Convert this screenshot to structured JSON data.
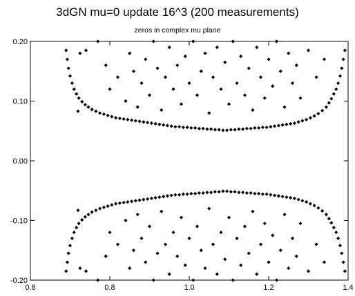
{
  "chart_data": {
    "type": "scatter",
    "title": "3dGN mu=0 update 16^3 (200 measurements)",
    "subtitle": "zeros in complex mu plane",
    "xlabel": "",
    "ylabel": "",
    "xlim": [
      0.6,
      1.4
    ],
    "ylim": [
      -0.2,
      0.2
    ],
    "x_ticks": [
      0.6,
      0.8,
      1.0,
      1.2,
      1.4
    ],
    "x_tick_labels": [
      "0.6",
      "0.8",
      "1.0",
      "1.2",
      "1.4"
    ],
    "y_ticks": [
      -0.2,
      -0.1,
      0.0,
      0.1,
      0.2
    ],
    "y_tick_labels": [
      "-0.20",
      "-0.10",
      "0.00",
      "0.10",
      "0.20"
    ],
    "grid": false,
    "legend": "none",
    "marker": "diamond",
    "marker_color": "#000000",
    "series": [
      {
        "values": [
          [
            0.69,
            0.185
          ],
          [
            0.693,
            0.17
          ],
          [
            0.696,
            0.155
          ],
          [
            0.7,
            0.142
          ],
          [
            0.705,
            0.13
          ],
          [
            0.71,
            0.12
          ],
          [
            0.716,
            0.112
          ],
          [
            0.722,
            0.105
          ],
          [
            0.73,
            0.099
          ],
          [
            0.738,
            0.094
          ],
          [
            0.746,
            0.09
          ],
          [
            0.755,
            0.086
          ],
          [
            0.765,
            0.083
          ],
          [
            0.775,
            0.08
          ],
          [
            0.785,
            0.078
          ],
          [
            0.795,
            0.076
          ],
          [
            0.805,
            0.074
          ],
          [
            0.815,
            0.072
          ],
          [
            0.825,
            0.071
          ],
          [
            0.835,
            0.07
          ],
          [
            0.845,
            0.069
          ],
          [
            0.855,
            0.068
          ],
          [
            0.865,
            0.067
          ],
          [
            0.875,
            0.066
          ],
          [
            0.885,
            0.065
          ],
          [
            0.895,
            0.064
          ],
          [
            0.905,
            0.063
          ],
          [
            0.915,
            0.062
          ],
          [
            0.925,
            0.061
          ],
          [
            0.935,
            0.06
          ],
          [
            0.945,
            0.059
          ],
          [
            0.955,
            0.058
          ],
          [
            0.965,
            0.057
          ],
          [
            0.975,
            0.057
          ],
          [
            0.985,
            0.056
          ],
          [
            0.995,
            0.056
          ],
          [
            1.005,
            0.055
          ],
          [
            1.015,
            0.055
          ],
          [
            1.025,
            0.054
          ],
          [
            1.035,
            0.054
          ],
          [
            1.045,
            0.053
          ],
          [
            1.055,
            0.053
          ],
          [
            1.065,
            0.052
          ],
          [
            1.075,
            0.052
          ],
          [
            1.085,
            0.051
          ],
          [
            1.095,
            0.051
          ],
          [
            1.105,
            0.052
          ],
          [
            1.115,
            0.052
          ],
          [
            1.125,
            0.053
          ],
          [
            1.135,
            0.053
          ],
          [
            1.145,
            0.054
          ],
          [
            1.155,
            0.054
          ],
          [
            1.165,
            0.055
          ],
          [
            1.175,
            0.055
          ],
          [
            1.185,
            0.056
          ],
          [
            1.195,
            0.056
          ],
          [
            1.205,
            0.057
          ],
          [
            1.215,
            0.058
          ],
          [
            1.225,
            0.059
          ],
          [
            1.235,
            0.06
          ],
          [
            1.245,
            0.061
          ],
          [
            1.255,
            0.062
          ],
          [
            1.265,
            0.063
          ],
          [
            1.275,
            0.065
          ],
          [
            1.285,
            0.067
          ],
          [
            1.295,
            0.069
          ],
          [
            1.305,
            0.072
          ],
          [
            1.315,
            0.075
          ],
          [
            1.325,
            0.079
          ],
          [
            1.335,
            0.084
          ],
          [
            1.345,
            0.09
          ],
          [
            1.352,
            0.097
          ],
          [
            1.358,
            0.104
          ],
          [
            1.364,
            0.112
          ],
          [
            1.37,
            0.12
          ],
          [
            1.375,
            0.13
          ],
          [
            1.38,
            0.142
          ],
          [
            1.384,
            0.155
          ],
          [
            1.388,
            0.17
          ],
          [
            1.392,
            0.185
          ],
          [
            0.69,
            -0.185
          ],
          [
            0.693,
            -0.17
          ],
          [
            0.696,
            -0.155
          ],
          [
            0.7,
            -0.142
          ],
          [
            0.705,
            -0.13
          ],
          [
            0.71,
            -0.12
          ],
          [
            0.716,
            -0.112
          ],
          [
            0.722,
            -0.105
          ],
          [
            0.73,
            -0.099
          ],
          [
            0.738,
            -0.094
          ],
          [
            0.746,
            -0.09
          ],
          [
            0.755,
            -0.086
          ],
          [
            0.765,
            -0.083
          ],
          [
            0.775,
            -0.08
          ],
          [
            0.785,
            -0.078
          ],
          [
            0.795,
            -0.076
          ],
          [
            0.805,
            -0.074
          ],
          [
            0.815,
            -0.072
          ],
          [
            0.825,
            -0.071
          ],
          [
            0.835,
            -0.07
          ],
          [
            0.845,
            -0.069
          ],
          [
            0.855,
            -0.068
          ],
          [
            0.865,
            -0.067
          ],
          [
            0.875,
            -0.066
          ],
          [
            0.885,
            -0.065
          ],
          [
            0.895,
            -0.064
          ],
          [
            0.905,
            -0.063
          ],
          [
            0.915,
            -0.062
          ],
          [
            0.925,
            -0.061
          ],
          [
            0.935,
            -0.06
          ],
          [
            0.945,
            -0.059
          ],
          [
            0.955,
            -0.058
          ],
          [
            0.965,
            -0.057
          ],
          [
            0.975,
            -0.057
          ],
          [
            0.985,
            -0.056
          ],
          [
            0.995,
            -0.056
          ],
          [
            1.005,
            -0.055
          ],
          [
            1.015,
            -0.055
          ],
          [
            1.025,
            -0.054
          ],
          [
            1.035,
            -0.054
          ],
          [
            1.045,
            -0.053
          ],
          [
            1.055,
            -0.053
          ],
          [
            1.065,
            -0.052
          ],
          [
            1.075,
            -0.052
          ],
          [
            1.085,
            -0.051
          ],
          [
            1.095,
            -0.051
          ],
          [
            1.105,
            -0.052
          ],
          [
            1.115,
            -0.052
          ],
          [
            1.125,
            -0.053
          ],
          [
            1.135,
            -0.053
          ],
          [
            1.145,
            -0.054
          ],
          [
            1.155,
            -0.054
          ],
          [
            1.165,
            -0.055
          ],
          [
            1.175,
            -0.055
          ],
          [
            1.185,
            -0.056
          ],
          [
            1.195,
            -0.056
          ],
          [
            1.205,
            -0.057
          ],
          [
            1.215,
            -0.058
          ],
          [
            1.225,
            -0.059
          ],
          [
            1.235,
            -0.06
          ],
          [
            1.245,
            -0.061
          ],
          [
            1.255,
            -0.062
          ],
          [
            1.265,
            -0.063
          ],
          [
            1.275,
            -0.065
          ],
          [
            1.285,
            -0.067
          ],
          [
            1.295,
            -0.069
          ],
          [
            1.305,
            -0.072
          ],
          [
            1.315,
            -0.075
          ],
          [
            1.325,
            -0.079
          ],
          [
            1.335,
            -0.084
          ],
          [
            1.345,
            -0.09
          ],
          [
            1.352,
            -0.097
          ],
          [
            1.358,
            -0.104
          ],
          [
            1.364,
            -0.112
          ],
          [
            1.37,
            -0.12
          ],
          [
            1.375,
            -0.13
          ],
          [
            1.38,
            -0.142
          ],
          [
            1.384,
            -0.155
          ],
          [
            1.388,
            -0.17
          ],
          [
            1.392,
            -0.185
          ],
          [
            0.72,
            0.083
          ],
          [
            0.725,
            0.18
          ],
          [
            0.74,
            0.185
          ],
          [
            0.77,
            0.2
          ],
          [
            0.79,
            0.16
          ],
          [
            0.8,
            0.12
          ],
          [
            0.82,
            0.14
          ],
          [
            0.84,
            0.1
          ],
          [
            0.85,
            0.18
          ],
          [
            0.86,
            0.15
          ],
          [
            0.87,
            0.09
          ],
          [
            0.88,
            0.13
          ],
          [
            0.89,
            0.17
          ],
          [
            0.9,
            0.11
          ],
          [
            0.91,
            0.2
          ],
          [
            0.92,
            0.155
          ],
          [
            0.93,
            0.085
          ],
          [
            0.94,
            0.14
          ],
          [
            0.95,
            0.19
          ],
          [
            0.96,
            0.12
          ],
          [
            0.97,
            0.16
          ],
          [
            0.98,
            0.095
          ],
          [
            0.99,
            0.175
          ],
          [
            1.0,
            0.13
          ],
          [
            1.01,
            0.2
          ],
          [
            1.02,
            0.11
          ],
          [
            1.03,
            0.15
          ],
          [
            1.04,
            0.18
          ],
          [
            1.05,
            0.08
          ],
          [
            1.06,
            0.14
          ],
          [
            1.07,
            0.19
          ],
          [
            1.08,
            0.12
          ],
          [
            1.09,
            0.165
          ],
          [
            1.1,
            0.095
          ],
          [
            1.11,
            0.2
          ],
          [
            1.12,
            0.13
          ],
          [
            1.13,
            0.175
          ],
          [
            1.14,
            0.11
          ],
          [
            1.15,
            0.155
          ],
          [
            1.16,
            0.085
          ],
          [
            1.17,
            0.19
          ],
          [
            1.18,
            0.14
          ],
          [
            1.19,
            0.105
          ],
          [
            1.2,
            0.17
          ],
          [
            1.21,
            0.125
          ],
          [
            1.22,
            0.2
          ],
          [
            1.23,
            0.15
          ],
          [
            1.24,
            0.09
          ],
          [
            1.25,
            0.18
          ],
          [
            1.26,
            0.13
          ],
          [
            1.27,
            0.16
          ],
          [
            1.28,
            0.105
          ],
          [
            1.3,
            0.185
          ],
          [
            1.32,
            0.14
          ],
          [
            1.34,
            0.17
          ],
          [
            0.72,
            -0.083
          ],
          [
            0.725,
            -0.18
          ],
          [
            0.74,
            -0.185
          ],
          [
            0.77,
            -0.2
          ],
          [
            0.79,
            -0.16
          ],
          [
            0.8,
            -0.12
          ],
          [
            0.82,
            -0.14
          ],
          [
            0.84,
            -0.1
          ],
          [
            0.85,
            -0.18
          ],
          [
            0.86,
            -0.15
          ],
          [
            0.87,
            -0.09
          ],
          [
            0.88,
            -0.13
          ],
          [
            0.89,
            -0.17
          ],
          [
            0.9,
            -0.11
          ],
          [
            0.91,
            -0.2
          ],
          [
            0.92,
            -0.155
          ],
          [
            0.93,
            -0.085
          ],
          [
            0.94,
            -0.14
          ],
          [
            0.95,
            -0.19
          ],
          [
            0.96,
            -0.12
          ],
          [
            0.97,
            -0.16
          ],
          [
            0.98,
            -0.095
          ],
          [
            0.99,
            -0.175
          ],
          [
            1.0,
            -0.13
          ],
          [
            1.01,
            -0.2
          ],
          [
            1.02,
            -0.11
          ],
          [
            1.03,
            -0.15
          ],
          [
            1.04,
            -0.18
          ],
          [
            1.05,
            -0.08
          ],
          [
            1.06,
            -0.14
          ],
          [
            1.07,
            -0.19
          ],
          [
            1.08,
            -0.12
          ],
          [
            1.09,
            -0.165
          ],
          [
            1.1,
            -0.095
          ],
          [
            1.11,
            -0.2
          ],
          [
            1.12,
            -0.13
          ],
          [
            1.13,
            -0.175
          ],
          [
            1.14,
            -0.11
          ],
          [
            1.15,
            -0.155
          ],
          [
            1.16,
            -0.085
          ],
          [
            1.17,
            -0.19
          ],
          [
            1.18,
            -0.14
          ],
          [
            1.19,
            -0.105
          ],
          [
            1.2,
            -0.17
          ],
          [
            1.21,
            -0.125
          ],
          [
            1.22,
            -0.2
          ],
          [
            1.23,
            -0.15
          ],
          [
            1.24,
            -0.09
          ],
          [
            1.25,
            -0.18
          ],
          [
            1.26,
            -0.13
          ],
          [
            1.27,
            -0.16
          ],
          [
            1.28,
            -0.105
          ],
          [
            1.3,
            -0.185
          ],
          [
            1.32,
            -0.14
          ],
          [
            1.34,
            -0.17
          ]
        ]
      }
    ]
  }
}
